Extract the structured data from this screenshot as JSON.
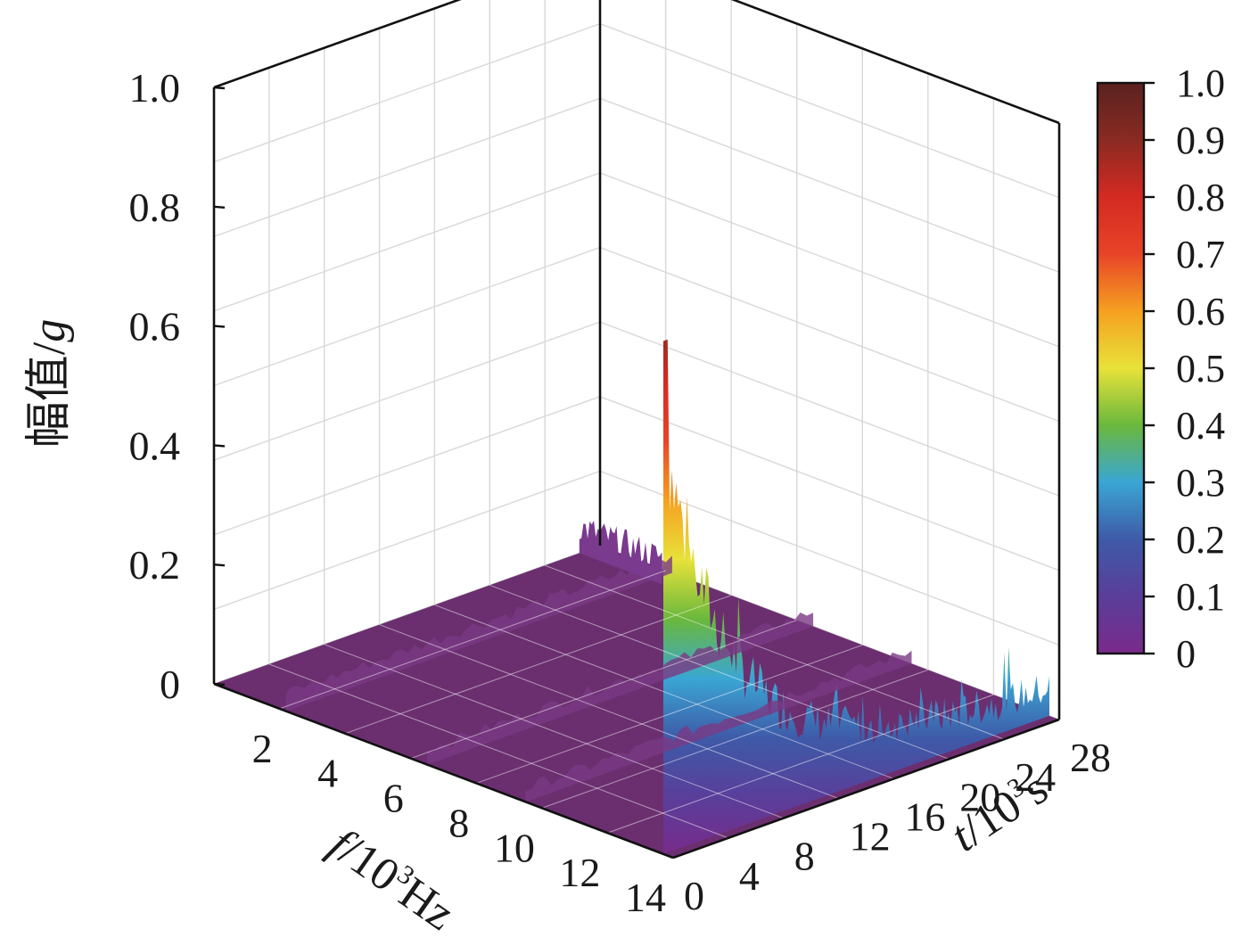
{
  "chart_data": {
    "type": "surface3d",
    "title": "",
    "xlabel": {
      "prefix": "f",
      "base": "/10",
      "exp": "3",
      "unit": "Hz"
    },
    "ylabel": {
      "prefix": "t",
      "base": "/10",
      "exp": "3",
      "unit": "s"
    },
    "zlabel": {
      "cjk": "幅值/",
      "var": "g"
    },
    "xlim": [
      0,
      14
    ],
    "ylim": [
      0,
      28
    ],
    "zlim": [
      0,
      1.0
    ],
    "x_ticks": [
      "2",
      "4",
      "6",
      "8",
      "10",
      "12",
      "14"
    ],
    "y_ticks": [
      "0",
      "4",
      "8",
      "12",
      "16",
      "20",
      "24",
      "28"
    ],
    "z_ticks": [
      "0",
      "0.2",
      "0.4",
      "0.6",
      "0.8",
      "1.0"
    ],
    "grid": true,
    "colorbar": {
      "ticks": [
        "0",
        "0.1",
        "0.2",
        "0.3",
        "0.4",
        "0.5",
        "0.6",
        "0.7",
        "0.8",
        "0.9",
        "1.0"
      ],
      "colors": [
        "#7a2a8a",
        "#5a3e9a",
        "#3e5aa8",
        "#3aa6d4",
        "#6ab83c",
        "#e8e23a",
        "#f5a020",
        "#e84428",
        "#d42a22",
        "#8a2a22",
        "#5a2220"
      ]
    },
    "series": [
      {
        "name": "",
        "description_peaks": [
          {
            "f": 14,
            "t": 0,
            "amplitude": 0.86
          },
          {
            "f": 14,
            "t": 2,
            "amplitude": 0.56
          },
          {
            "f": 14,
            "t": 6,
            "amplitude": 0.3
          },
          {
            "f": 14,
            "t": 12,
            "amplitude": 0.18
          },
          {
            "f": 14,
            "t": 20,
            "amplitude": 0.08
          },
          {
            "f": 4.5,
            "t": 27,
            "amplitude": 0.1
          },
          {
            "f": 0.5,
            "t": 1,
            "amplitude": 0.08
          },
          {
            "f": 0.5,
            "t": 24,
            "amplitude": 0.12
          }
        ]
      }
    ]
  }
}
